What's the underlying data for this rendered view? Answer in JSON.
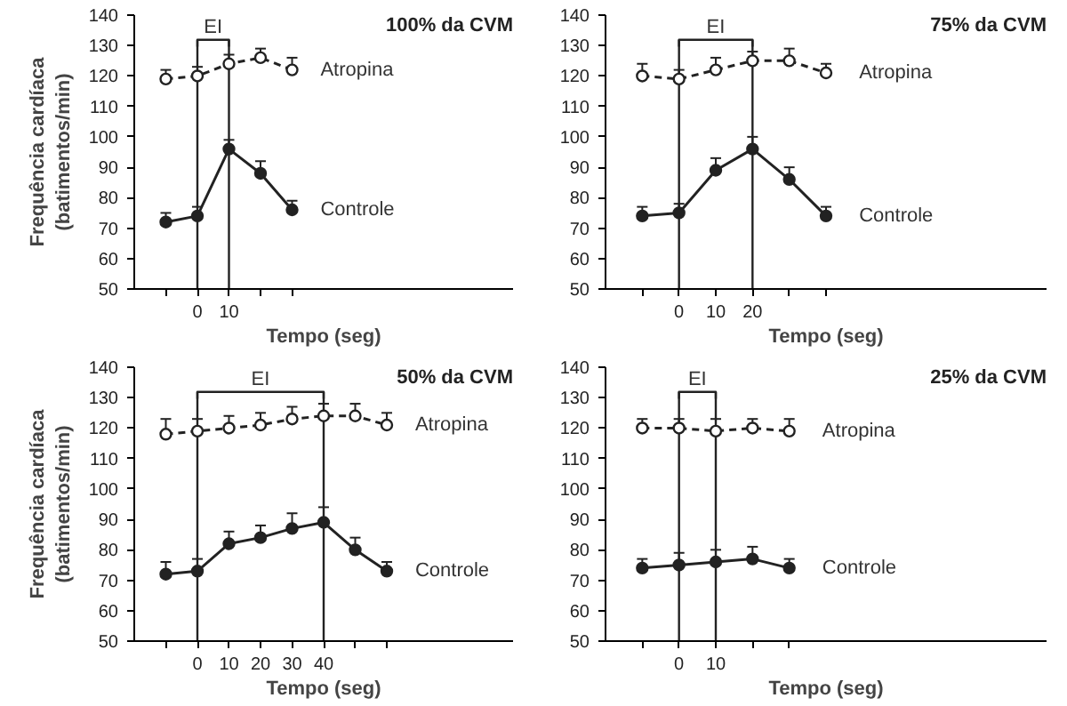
{
  "chart_data": [
    {
      "type": "line",
      "title": "100% da CVM",
      "xlabel": "Tempo (seg)",
      "ylabel": "Frequência cardíaca (batimentos/min)",
      "x": [
        -10,
        0,
        10,
        20,
        30
      ],
      "xlim": [
        -20,
        100
      ],
      "ylim": [
        50,
        140
      ],
      "xticks": [
        {
          "value": -10,
          "label": null
        },
        0,
        10,
        {
          "value": 20,
          "label": null
        },
        {
          "value": 30,
          "label": null
        }
      ],
      "yticks": [
        50,
        60,
        70,
        80,
        90,
        100,
        110,
        120,
        130,
        140
      ],
      "marker": "circle",
      "ref_lines": [
        {
          "axis": "x",
          "value": 0
        },
        {
          "axis": "x",
          "value": 10
        }
      ],
      "annotations": [
        "EI"
      ],
      "series": [
        {
          "name": "Atropina",
          "color": "#222222",
          "line_style": "dashed",
          "values": [
            119,
            120,
            124,
            126,
            122
          ],
          "errors": [
            [
              119,
              122
            ],
            [
              120,
              123
            ],
            [
              124,
              127
            ],
            [
              126,
              129
            ],
            [
              122,
              126
            ]
          ]
        },
        {
          "name": "Controle",
          "color": "#222222",
          "line_style": "solid",
          "values": [
            72,
            74,
            96,
            88,
            76
          ],
          "errors": [
            [
              72,
              75
            ],
            [
              74,
              77
            ],
            [
              96,
              99
            ],
            [
              88,
              92
            ],
            [
              76,
              79
            ]
          ]
        }
      ]
    },
    {
      "type": "line",
      "title": "75% da CVM",
      "xlabel": "Tempo (seg)",
      "x": [
        -10,
        0,
        10,
        20,
        30,
        40
      ],
      "xlim": [
        -20,
        100
      ],
      "ylim": [
        50,
        140
      ],
      "xticks": [
        {
          "value": -10,
          "label": null
        },
        0,
        10,
        20,
        {
          "value": 30,
          "label": null
        },
        {
          "value": 40,
          "label": null
        }
      ],
      "yticks": [
        50,
        60,
        70,
        80,
        90,
        100,
        110,
        120,
        130,
        140
      ],
      "marker": "circle",
      "ref_lines": [
        {
          "axis": "x",
          "value": 0
        },
        {
          "axis": "x",
          "value": 20
        }
      ],
      "annotations": [
        "EI"
      ],
      "series": [
        {
          "name": "Atropina",
          "color": "#222222",
          "line_style": "dashed",
          "values": [
            120,
            119,
            122,
            125,
            125,
            121
          ],
          "errors": [
            [
              120,
              124
            ],
            [
              119,
              122
            ],
            [
              122,
              126
            ],
            [
              125,
              128
            ],
            [
              125,
              129
            ],
            [
              121,
              124
            ]
          ]
        },
        {
          "name": "Controle",
          "color": "#222222",
          "line_style": "solid",
          "values": [
            74,
            75,
            89,
            96,
            86,
            74
          ],
          "errors": [
            [
              74,
              77
            ],
            [
              75,
              78
            ],
            [
              89,
              93
            ],
            [
              96,
              100
            ],
            [
              86,
              90
            ],
            [
              74,
              77
            ]
          ]
        }
      ]
    },
    {
      "type": "line",
      "title": "50% da CVM",
      "xlabel": "Tempo (seg)",
      "ylabel": "Frequência cardíaca (batimentos/min)",
      "x": [
        -10,
        0,
        10,
        20,
        30,
        40,
        50,
        60
      ],
      "xlim": [
        -20,
        100
      ],
      "ylim": [
        50,
        140
      ],
      "xticks": [
        {
          "value": -10,
          "label": null
        },
        0,
        10,
        20,
        30,
        40,
        {
          "value": 50,
          "label": null
        },
        {
          "value": 60,
          "label": null
        }
      ],
      "yticks": [
        50,
        60,
        70,
        80,
        90,
        100,
        110,
        120,
        130,
        140
      ],
      "marker": "circle",
      "ref_lines": [
        {
          "axis": "x",
          "value": 0
        },
        {
          "axis": "x",
          "value": 40
        }
      ],
      "annotations": [
        "EI"
      ],
      "series": [
        {
          "name": "Atropina",
          "color": "#222222",
          "line_style": "dashed",
          "values": [
            118,
            119,
            120,
            121,
            123,
            124,
            124,
            121
          ],
          "errors": [
            [
              118,
              123
            ],
            [
              119,
              123
            ],
            [
              120,
              124
            ],
            [
              121,
              125
            ],
            [
              123,
              127
            ],
            [
              124,
              128
            ],
            [
              124,
              128
            ],
            [
              121,
              125
            ]
          ]
        },
        {
          "name": "Controle",
          "color": "#222222",
          "line_style": "solid",
          "values": [
            72,
            73,
            82,
            84,
            87,
            89,
            80,
            73
          ],
          "errors": [
            [
              72,
              76
            ],
            [
              73,
              77
            ],
            [
              82,
              86
            ],
            [
              84,
              88
            ],
            [
              87,
              92
            ],
            [
              89,
              94
            ],
            [
              80,
              84
            ],
            [
              73,
              76
            ]
          ]
        }
      ]
    },
    {
      "type": "line",
      "title": "25% da CVM",
      "xlabel": "Tempo (seg)",
      "x": [
        -10,
        0,
        10,
        20,
        30
      ],
      "xlim": [
        -20,
        100
      ],
      "ylim": [
        50,
        140
      ],
      "xticks": [
        {
          "value": -10,
          "label": null
        },
        0,
        10,
        {
          "value": 20,
          "label": null
        },
        {
          "value": 30,
          "label": null
        }
      ],
      "yticks": [
        50,
        60,
        70,
        80,
        90,
        100,
        110,
        120,
        130,
        140
      ],
      "marker": "circle",
      "ref_lines": [
        {
          "axis": "x",
          "value": 0
        },
        {
          "axis": "x",
          "value": 10
        }
      ],
      "annotations": [
        "EI"
      ],
      "series": [
        {
          "name": "Atropina",
          "color": "#222222",
          "line_style": "dashed",
          "values": [
            120,
            120,
            119,
            120,
            119
          ],
          "errors": [
            [
              120,
              123
            ],
            [
              120,
              123
            ],
            [
              119,
              123
            ],
            [
              120,
              123
            ],
            [
              119,
              123
            ]
          ]
        },
        {
          "name": "Controle",
          "color": "#222222",
          "line_style": "solid",
          "values": [
            74,
            75,
            76,
            77,
            74
          ],
          "errors": [
            [
              74,
              77
            ],
            [
              75,
              79
            ],
            [
              76,
              80
            ],
            [
              77,
              81
            ],
            [
              74,
              77
            ]
          ]
        }
      ]
    }
  ]
}
